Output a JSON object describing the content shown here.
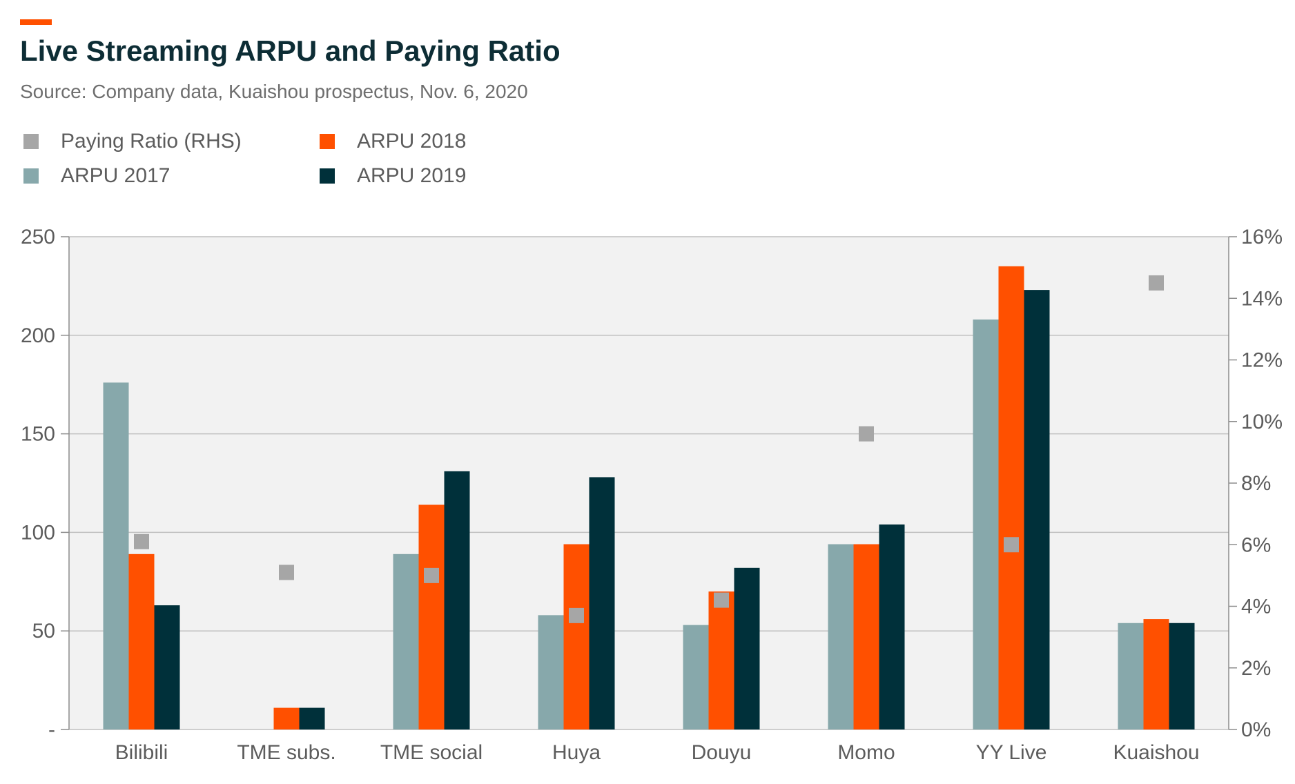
{
  "title": "Live Streaming ARPU and Paying Ratio",
  "subtitle": "Source: Company data, Kuaishou prospectus, Nov. 6, 2020",
  "colors": {
    "accent": "#ff5000",
    "title": "#0d2d35",
    "plot_bg": "#f2f2f2",
    "grid": "#bfbfbf",
    "arpu_2017": "#87a8ab",
    "arpu_2018": "#ff5000",
    "arpu_2019": "#00303a",
    "paying_ratio": "#a6a6a6"
  },
  "legend": [
    {
      "label": "Paying Ratio (RHS)",
      "color": "#a6a6a6"
    },
    {
      "label": "ARPU 2018",
      "color": "#ff5000"
    },
    {
      "label": "ARPU 2017",
      "color": "#87a8ab"
    },
    {
      "label": "ARPU 2019",
      "color": "#00303a"
    }
  ],
  "chart_data": {
    "type": "bar",
    "title": "Live Streaming ARPU and Paying Ratio",
    "subtitle": "Source: Company data, Kuaishou prospectus, Nov. 6, 2020",
    "categories": [
      "Bilibili",
      "TME subs.",
      "TME social",
      "Huya",
      "Douyu",
      "Momo",
      "YY Live",
      "Kuaishou"
    ],
    "series": [
      {
        "name": "ARPU 2017",
        "axis": "left",
        "values": [
          176,
          null,
          89,
          58,
          53,
          94,
          208,
          54
        ]
      },
      {
        "name": "ARPU 2018",
        "axis": "left",
        "values": [
          89,
          11,
          114,
          94,
          70,
          94,
          235,
          56
        ]
      },
      {
        "name": "ARPU 2019",
        "axis": "left",
        "values": [
          63,
          11,
          131,
          128,
          82,
          104,
          223,
          54
        ]
      },
      {
        "name": "Paying Ratio (RHS)",
        "axis": "right",
        "type": "scatter",
        "values": [
          6.1,
          5.1,
          5.0,
          3.7,
          4.2,
          9.6,
          6.0,
          14.5
        ]
      }
    ],
    "y_left": {
      "ylim": [
        0,
        250
      ],
      "ticks": [
        0,
        50,
        100,
        150,
        200,
        250
      ],
      "tick_labels": [
        "-",
        "50",
        "100",
        "150",
        "200",
        "250"
      ]
    },
    "y_right": {
      "ylim": [
        0,
        16
      ],
      "ticks": [
        0,
        2,
        4,
        6,
        8,
        10,
        12,
        14,
        16
      ],
      "tick_labels": [
        "0%",
        "2%",
        "4%",
        "6%",
        "8%",
        "10%",
        "12%",
        "14%",
        "16%"
      ]
    },
    "grid": true,
    "legend_position": "top-left"
  }
}
